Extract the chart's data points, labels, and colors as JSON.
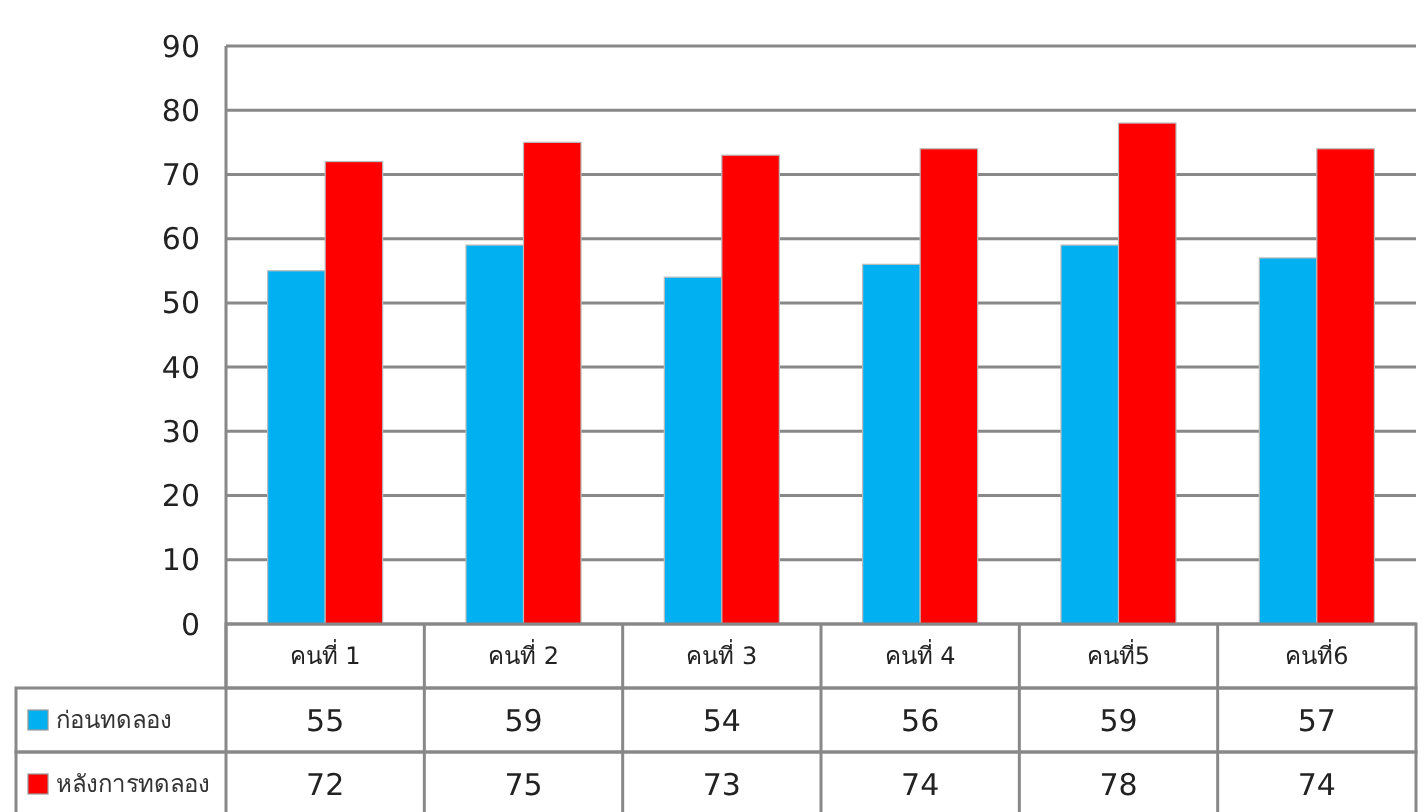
{
  "chart_data": {
    "type": "bar",
    "categories": [
      "คนที่ 1",
      "คนที่ 2",
      "คนที่ 3",
      "คนที่ 4",
      "คนที่5",
      "คนที่6"
    ],
    "series": [
      {
        "name": "ก่อนทดลอง",
        "color": "#00b0f0",
        "values": [
          55,
          59,
          54,
          56,
          59,
          57
        ]
      },
      {
        "name": "หลังการทดลอง",
        "color": "#ff0000",
        "values": [
          72,
          75,
          73,
          74,
          78,
          74
        ]
      }
    ],
    "ylim": [
      0,
      90
    ],
    "yticks": [
      0,
      10,
      20,
      30,
      40,
      50,
      60,
      70,
      80,
      90
    ],
    "grid": "y",
    "legend": "bottom left",
    "data_labels": true
  }
}
